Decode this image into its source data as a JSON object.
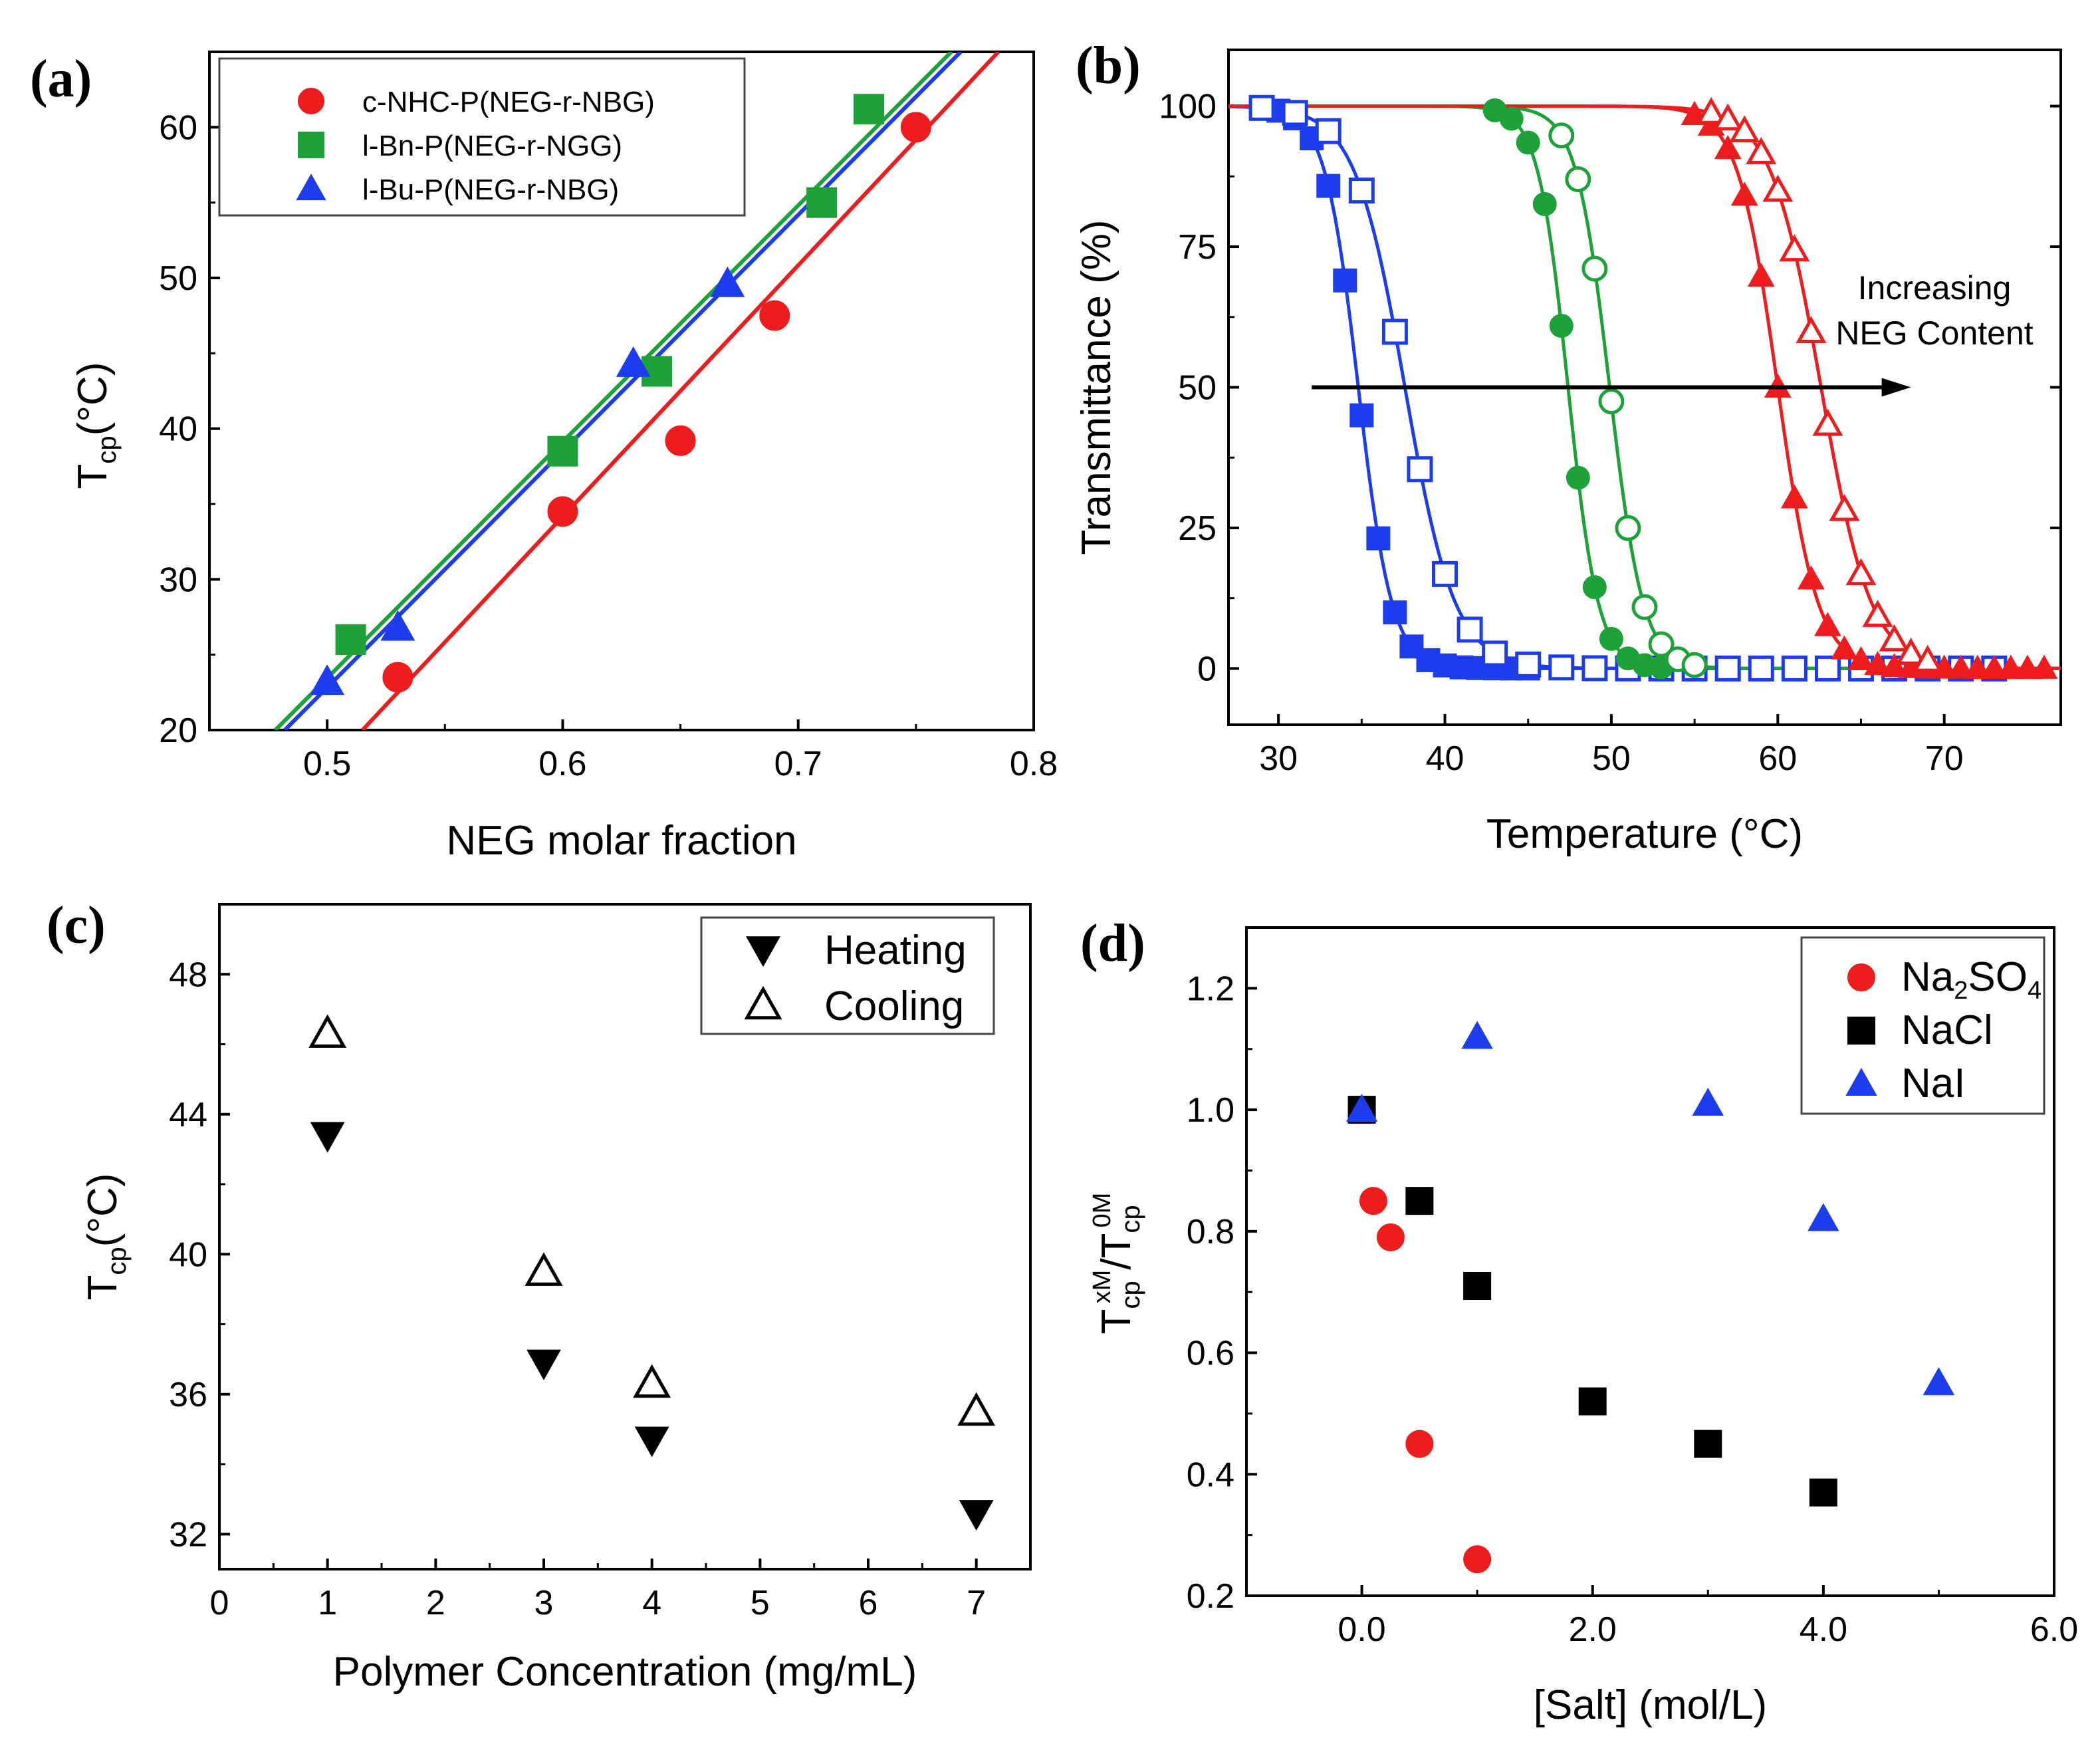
{
  "chart_data": [
    {
      "id": "a",
      "panel_label": "(a)",
      "type": "scatter",
      "xlabel": "NEG molar fraction",
      "ylabel": {
        "main": "T",
        "sub": "cp",
        "unit": "(°C)"
      },
      "xlim": [
        0.45,
        0.8
      ],
      "ylim": [
        20,
        65
      ],
      "xticks": [
        0.5,
        0.6,
        0.7,
        0.8
      ],
      "xtick_labels": [
        "0.5",
        "0.6",
        "0.7",
        "0.8"
      ],
      "yticks": [
        20,
        30,
        40,
        50,
        60
      ],
      "ytick_labels": [
        "20",
        "30",
        "40",
        "50",
        "60"
      ],
      "legend_position": "top-left",
      "series": [
        {
          "name": "c-NHC-P(NEG-r-NBG)",
          "marker": "circle",
          "filled": true,
          "color": "#ee1c1c",
          "x": [
            0.53,
            0.6,
            0.65,
            0.69,
            0.75
          ],
          "y": [
            23.5,
            34.5,
            39.2,
            47.5,
            60.0
          ],
          "fit": [
            [
              0.515,
              20
            ],
            [
              0.785,
              65
            ]
          ]
        },
        {
          "name": "l-Bn-P(NEG-r-NGG)",
          "marker": "square",
          "filled": true,
          "color": "#1ca238",
          "x": [
            0.51,
            0.6,
            0.64,
            0.71,
            0.73
          ],
          "y": [
            26.0,
            38.5,
            43.8,
            55.0,
            61.2
          ],
          "fit": [
            [
              0.478,
              20
            ],
            [
              0.765,
              65
            ]
          ]
        },
        {
          "name": "l-Bu-P(NEG-r-NBG)",
          "marker": "triangle-up",
          "filled": true,
          "color": "#1c3cee",
          "x": [
            0.5,
            0.53,
            0.63,
            0.67
          ],
          "y": [
            23.2,
            26.8,
            44.3,
            49.6
          ],
          "fit": [
            [
              0.482,
              20
            ],
            [
              0.769,
              65
            ]
          ]
        }
      ]
    },
    {
      "id": "b",
      "panel_label": "(b)",
      "type": "line",
      "xlabel": "Temperature (°C)",
      "ylabel": "Transmittance (%)",
      "xlim": [
        27,
        77
      ],
      "ylim": [
        -10,
        110
      ],
      "xticks": [
        30,
        40,
        50,
        60,
        70
      ],
      "xtick_labels": [
        "30",
        "40",
        "50",
        "60",
        "70"
      ],
      "yticks": [
        0,
        25,
        50,
        75,
        100
      ],
      "ytick_labels": [
        "0",
        "25",
        "50",
        "75",
        "100"
      ],
      "annotation": {
        "lines": [
          "Increasing",
          "NEG Content"
        ],
        "arrow_from": [
          32,
          50
        ],
        "arrow_to": [
          68,
          50
        ]
      },
      "series": [
        {
          "color": "#1c3cee",
          "marker": "square",
          "filled": true,
          "t0": 34.8,
          "s": 1.0,
          "marker_x": [
            30,
            31,
            32,
            33,
            34,
            35,
            36,
            37,
            38,
            39,
            40,
            41,
            42,
            43,
            44,
            45
          ]
        },
        {
          "color": "#1c3cee",
          "marker": "square",
          "filled": false,
          "t0": 37.6,
          "s": 1.5,
          "marker_x": [
            29,
            31,
            33,
            35,
            37,
            38.5,
            40,
            41.5,
            43,
            45,
            47,
            49,
            51,
            53,
            55,
            57,
            59,
            61,
            63,
            65,
            67,
            69,
            71,
            73
          ]
        },
        {
          "color": "#1ca238",
          "marker": "circle",
          "filled": true,
          "t0": 47.4,
          "s": 0.9,
          "marker_x": [
            43,
            44,
            45,
            46,
            47,
            48,
            49,
            50,
            51,
            52,
            53
          ]
        },
        {
          "color": "#1ca238",
          "marker": "circle",
          "filled": false,
          "t0": 49.9,
          "s": 1.0,
          "marker_x": [
            47,
            48,
            49,
            50,
            51,
            52,
            53,
            54,
            55
          ]
        },
        {
          "color": "#ee1c1c",
          "marker": "triangle-up",
          "filled": true,
          "t0": 60.0,
          "s": 1.2,
          "marker_x": [
            55,
            56,
            57,
            58,
            59,
            60,
            61,
            62,
            63,
            64,
            65,
            66,
            67,
            68,
            69,
            70,
            71,
            72,
            73,
            74,
            75,
            76
          ]
        },
        {
          "color": "#ee1c1c",
          "marker": "triangle-up",
          "filled": false,
          "t0": 62.6,
          "s": 1.5,
          "marker_x": [
            56,
            57,
            58,
            59,
            60,
            61,
            62,
            63,
            64,
            65,
            66,
            67,
            68,
            69
          ]
        }
      ]
    },
    {
      "id": "c",
      "panel_label": "(c)",
      "type": "scatter",
      "xlabel": "Polymer Concentration (mg/mL)",
      "ylabel": {
        "main": "T",
        "sub": "cp",
        "unit": "(°C)"
      },
      "xlim": [
        0,
        7.5
      ],
      "ylim": [
        31,
        50
      ],
      "xticks": [
        0,
        1,
        2,
        3,
        4,
        5,
        6,
        7
      ],
      "xtick_labels": [
        "0",
        "1",
        "2",
        "3",
        "4",
        "5",
        "6",
        "7"
      ],
      "yticks": [
        32,
        36,
        40,
        44,
        48
      ],
      "ytick_labels": [
        "32",
        "36",
        "40",
        "44",
        "48"
      ],
      "legend_position": "top-right",
      "series": [
        {
          "name": "Heating",
          "marker": "triangle-down",
          "filled": true,
          "color": "#000000",
          "x": [
            1,
            3,
            4,
            7
          ],
          "y": [
            43.4,
            36.9,
            34.7,
            32.6
          ]
        },
        {
          "name": "Cooling",
          "marker": "triangle-up",
          "filled": false,
          "color": "#000000",
          "x": [
            1,
            3,
            4,
            7
          ],
          "y": [
            46.3,
            39.5,
            36.3,
            35.5
          ]
        }
      ]
    },
    {
      "id": "d",
      "panel_label": "(d)",
      "type": "scatter",
      "xlabel": "[Salt] (mol/L)",
      "ylabel": {
        "main": "T",
        "sub": "cp",
        "sup": "xM",
        "mid": "/T",
        "sub2": "cp",
        "sup2": "0M"
      },
      "xlim": [
        -1,
        6
      ],
      "ylim": [
        0.2,
        1.3
      ],
      "xticks": [
        0,
        2,
        4,
        6
      ],
      "xtick_labels": [
        "0.0",
        "2.0",
        "4.0",
        "6.0"
      ],
      "yticks": [
        0.2,
        0.4,
        0.6,
        0.8,
        1.0,
        1.2
      ],
      "ytick_labels": [
        "0.2",
        "0.4",
        "0.6",
        "0.8",
        "1.0",
        "1.2"
      ],
      "legend_position": "top-right",
      "series": [
        {
          "name": "Na2SO4",
          "name_parts": [
            "Na",
            "2",
            "SO",
            "4"
          ],
          "marker": "circle",
          "filled": true,
          "color": "#ee1c1c",
          "x": [
            0,
            0.1,
            0.25,
            0.5,
            1.0
          ],
          "y": [
            1.0,
            0.85,
            0.79,
            0.45,
            0.26
          ]
        },
        {
          "name": "NaCl",
          "marker": "square",
          "filled": true,
          "color": "#000000",
          "x": [
            0,
            0.5,
            1.0,
            2.0,
            3.0,
            4.0
          ],
          "y": [
            1.0,
            0.85,
            0.71,
            0.52,
            0.45,
            0.37
          ]
        },
        {
          "name": "NaI",
          "display_name": "NaI",
          "marker": "triangle-up",
          "filled": true,
          "color": "#1c3cee",
          "x": [
            0,
            1.0,
            3.0,
            4.0,
            5.0
          ],
          "y": [
            1.0,
            1.12,
            1.01,
            0.82,
            0.55
          ]
        }
      ]
    }
  ]
}
